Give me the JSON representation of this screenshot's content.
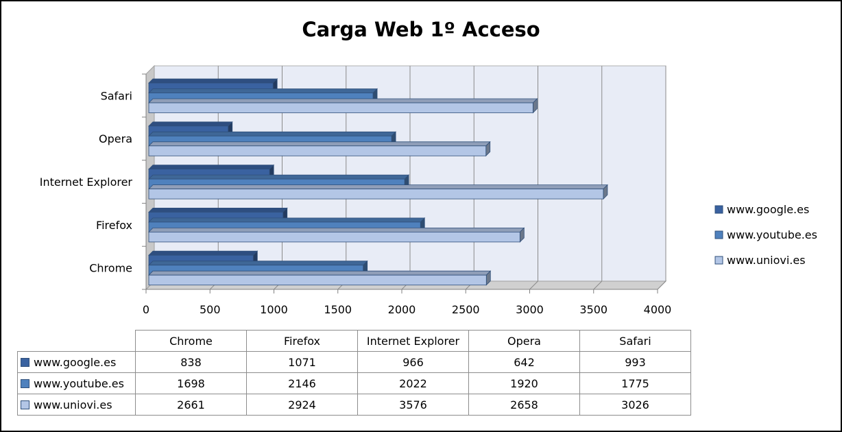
{
  "chart_data": {
    "type": "bar",
    "orientation": "horizontal",
    "title": "Carga Web 1º Acceso",
    "categories": [
      "Chrome",
      "Firefox",
      "Internet Explorer",
      "Opera",
      "Safari"
    ],
    "series": [
      {
        "name": "www.google.es",
        "values": [
          838,
          1071,
          966,
          642,
          993
        ],
        "color": "#3a62a0"
      },
      {
        "name": "www.youtube.es",
        "values": [
          1698,
          2146,
          2022,
          1920,
          1775
        ],
        "color": "#4f81bd"
      },
      {
        "name": "www.uniovi.es",
        "values": [
          2661,
          2924,
          3576,
          2658,
          3026
        ],
        "color": "#b3c6e6"
      }
    ],
    "xlim": [
      0,
      4000
    ],
    "x_ticks": [
      "0",
      "500",
      "1000",
      "1500",
      "2000",
      "2500",
      "3000",
      "3500",
      "4000"
    ],
    "grid": true,
    "legend": "right",
    "data_table": true
  }
}
